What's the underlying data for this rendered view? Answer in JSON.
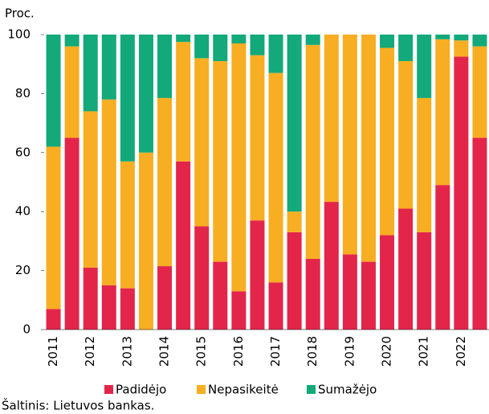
{
  "chart_data": {
    "type": "stacked_bar",
    "y_label": "Proc.",
    "source": "Šaltinis: Lietuvos bankas.",
    "categories": [
      "2011",
      null,
      "2012",
      null,
      "2013",
      null,
      "2014",
      null,
      "2015",
      null,
      "2016",
      null,
      "2017",
      null,
      "2018",
      null,
      "2019",
      null,
      "2020",
      null,
      "2021",
      null,
      "2022",
      null
    ],
    "series": [
      {
        "name": "Padidėjo",
        "color": "#e4254a",
        "values": [
          7,
          65,
          21,
          15,
          14,
          0,
          21.5,
          57,
          35,
          23,
          13,
          37,
          16,
          33,
          24,
          43.3,
          25.5,
          23,
          32,
          41,
          33,
          49,
          92.5,
          65
        ]
      },
      {
        "name": "Nepasikeitė",
        "color": "#f7ae22",
        "values": [
          55,
          31,
          53,
          63,
          43,
          60,
          57,
          40.5,
          57,
          68,
          84,
          56,
          71,
          7,
          72.5,
          56.7,
          74.5,
          77,
          63.5,
          50,
          45.5,
          49.4,
          5.5,
          31
        ]
      },
      {
        "name": "Sumažėjo",
        "color": "#13a97a",
        "values": [
          38,
          4,
          26,
          22,
          43,
          40,
          21.5,
          2.5,
          8,
          9,
          3,
          7,
          13,
          60,
          3.5,
          0,
          0,
          0,
          4.5,
          9,
          21.5,
          1.6,
          2,
          4
        ]
      }
    ],
    "ylim": [
      0,
      100
    ],
    "yticks": [
      0,
      20,
      40,
      60,
      80,
      100
    ],
    "legend": "bottom"
  }
}
